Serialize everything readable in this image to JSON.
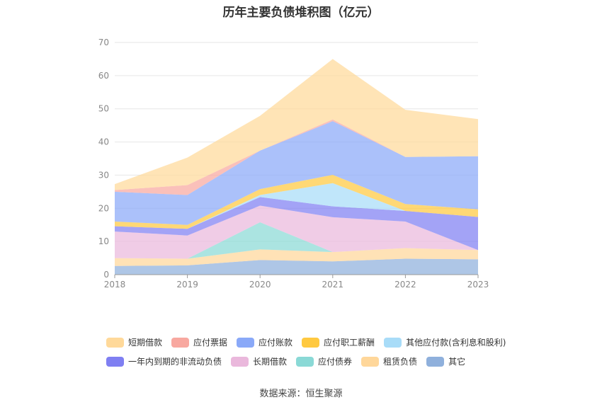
{
  "chart_data": {
    "type": "area",
    "title": "历年主要负债堆积图（亿元）",
    "source": "数据来源：恒生聚源",
    "x": [
      "2018",
      "2019",
      "2020",
      "2021",
      "2022",
      "2023"
    ],
    "y_ticks": [
      "0",
      "10",
      "20",
      "30",
      "40",
      "50",
      "60",
      "70"
    ],
    "ylim": [
      0,
      70
    ],
    "stacked": true,
    "grid": true,
    "legend_position": "bottom",
    "series": [
      {
        "name": "其它",
        "color": "#8fb0dc",
        "values": [
          2.6,
          2.8,
          4.4,
          4.0,
          4.8,
          4.6
        ]
      },
      {
        "name": "租赁负债",
        "color": "#ffd79a",
        "values": [
          2.4,
          2.0,
          3.2,
          2.8,
          3.2,
          2.8
        ]
      },
      {
        "name": "应付债券",
        "color": "#8ad9d6",
        "values": [
          0,
          0,
          8.2,
          0,
          0,
          0
        ]
      },
      {
        "name": "长期借款",
        "color": "#eab8dc",
        "values": [
          8.0,
          7.0,
          5.0,
          10.5,
          8.0,
          0
        ]
      },
      {
        "name": "一年内到期的非流动负债",
        "color": "#7f7ff2",
        "values": [
          1.6,
          2.0,
          2.6,
          3.3,
          3.2,
          10.0
        ]
      },
      {
        "name": "其他应付款(含利息和股利)",
        "color": "#a8dcf8",
        "values": [
          0,
          0,
          0.6,
          7.0,
          0,
          0
        ]
      },
      {
        "name": "应付职工薪酬",
        "color": "#ffc940",
        "values": [
          1.4,
          1.2,
          1.8,
          2.5,
          2.1,
          2.3
        ]
      },
      {
        "name": "应付账款",
        "color": "#8aa9f8",
        "values": [
          9.0,
          9.0,
          11.6,
          16.2,
          14.2,
          16.0
        ]
      },
      {
        "name": "应付票据",
        "color": "#f8a8a0",
        "values": [
          0.5,
          3.0,
          0,
          0.5,
          0,
          0
        ]
      },
      {
        "name": "短期借款",
        "color": "#ffd99a",
        "values": [
          1.8,
          8.3,
          10.5,
          18.2,
          14.2,
          11.2
        ]
      }
    ]
  },
  "legend": {
    "row1": [
      {
        "label": "短期借款",
        "color": "#ffd99a"
      },
      {
        "label": "应付票据",
        "color": "#f8a8a0"
      },
      {
        "label": "应付账款",
        "color": "#8aa9f8"
      },
      {
        "label": "应付职工薪酬",
        "color": "#ffc940"
      },
      {
        "label": "其他应付款(含利息和股利)",
        "color": "#a8dcf8"
      }
    ],
    "row2": [
      {
        "label": "一年内到期的非流动负债",
        "color": "#7f7ff2"
      },
      {
        "label": "长期借款",
        "color": "#eab8dc"
      },
      {
        "label": "应付债券",
        "color": "#8ad9d6"
      },
      {
        "label": "租赁负债",
        "color": "#ffd79a"
      },
      {
        "label": "其它",
        "color": "#8fb0dc"
      }
    ]
  }
}
